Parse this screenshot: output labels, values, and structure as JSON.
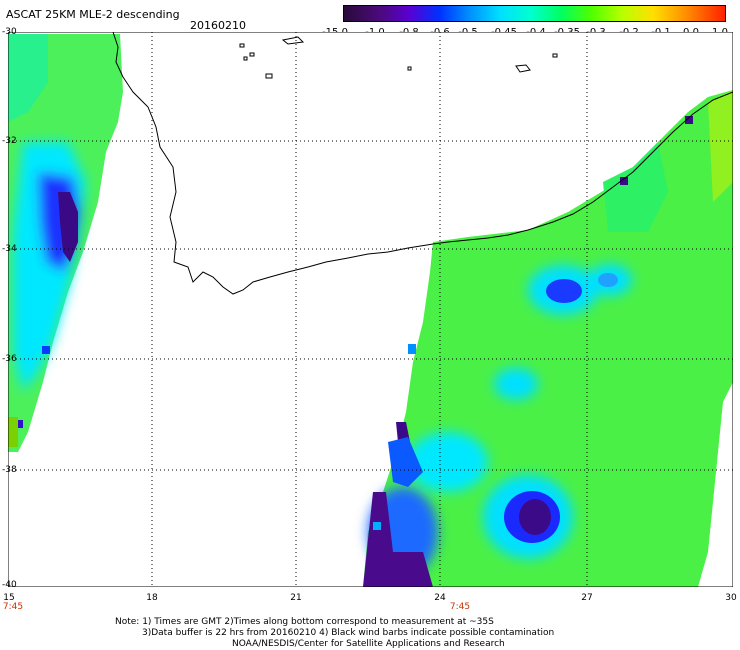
{
  "header": {
    "title": "ASCAT 25KM MLE-2 descending",
    "date": "20160210"
  },
  "colorbar": {
    "labels": [
      "-15.0",
      "-1.0",
      "-0.8",
      "-0.6",
      "-0.5",
      "-0.45",
      "-0.4",
      "-0.35",
      "-0.3",
      "-0.2",
      "-0.1",
      "0.0",
      "1.0"
    ],
    "colors": [
      "#2a0a3a",
      "#4a0a78",
      "#5a00d0",
      "#0030ff",
      "#0090ff",
      "#00e0ff",
      "#00ffd0",
      "#00ff60",
      "#50ff00",
      "#b8ff00",
      "#ffe000",
      "#ff8c00",
      "#ff2000"
    ]
  },
  "axes": {
    "y_labels": [
      "-30",
      "-32",
      "-34",
      "-36",
      "-38",
      "-40"
    ],
    "x_labels": [
      "15",
      "18",
      "21",
      "24",
      "27",
      "30"
    ],
    "time_labels": [
      "7:45",
      "7:45"
    ]
  },
  "notes": {
    "line1": "Note: 1) Times are GMT 2)Times along bottom correspond to measurement at ~35S",
    "line2": "3)Data buffer is 22 hrs from 20160210 4) Black wind barbs indicate possible contamination",
    "line3": "NOAA/NESDIS/Center for Satellite Applications and Research"
  }
}
